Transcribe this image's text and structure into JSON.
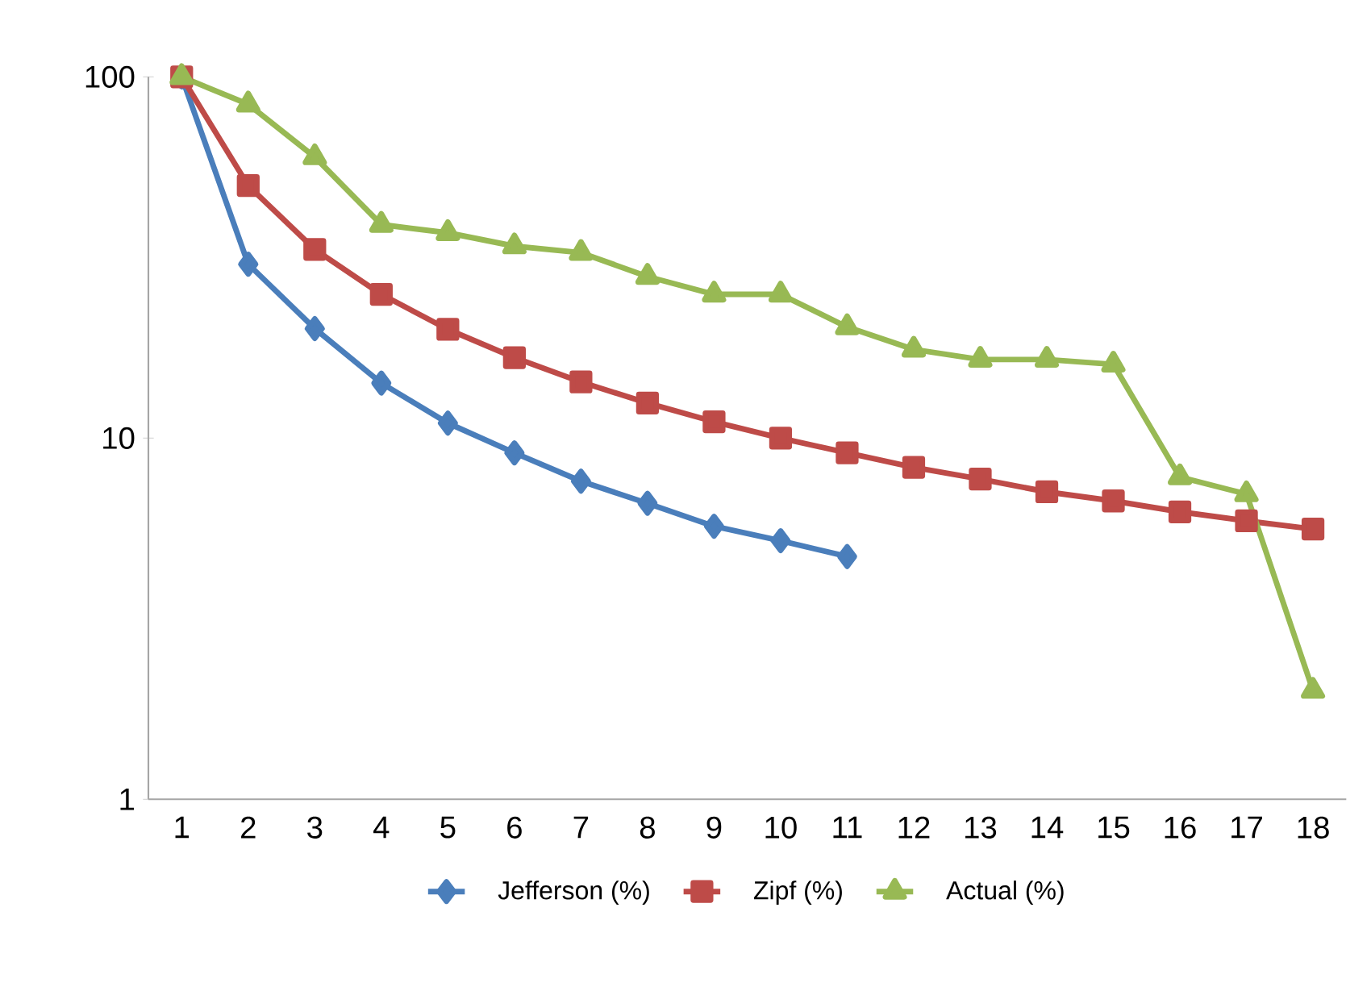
{
  "chart_data": {
    "type": "line",
    "log": "y",
    "categories": [
      "1",
      "2",
      "3",
      "4",
      "5",
      "6",
      "7",
      "8",
      "9",
      "10",
      "11",
      "12",
      "13",
      "14",
      "15",
      "16",
      "17",
      "18"
    ],
    "ylim": [
      1,
      100
    ],
    "yticks": [
      1,
      10,
      100
    ],
    "legend": "bottom",
    "grid": false,
    "line_style": "solid",
    "series": [
      {
        "name": "Jefferson (%)",
        "color": "#4a7ebb",
        "marker": "diamond",
        "values": [
          100,
          30.3,
          20.1,
          14.2,
          11.0,
          9.1,
          7.6,
          6.6,
          5.7,
          5.2,
          4.7,
          null,
          null,
          null,
          null,
          null,
          null,
          null
        ]
      },
      {
        "name": "Zipf (%)",
        "color": "#be4b48",
        "marker": "square",
        "values": [
          100,
          50,
          33.3,
          25,
          20,
          16.7,
          14.3,
          12.5,
          11.1,
          10,
          9.1,
          8.3,
          7.7,
          7.1,
          6.7,
          6.25,
          5.9,
          5.6
        ]
      },
      {
        "name": "Actual (%)",
        "color": "#98b954",
        "marker": "triangle",
        "values": [
          100,
          84,
          60,
          39,
          37,
          34,
          32.6,
          28,
          25,
          25,
          20.3,
          17.6,
          16.5,
          16.5,
          16,
          7.8,
          7,
          2.0
        ]
      }
    ]
  }
}
